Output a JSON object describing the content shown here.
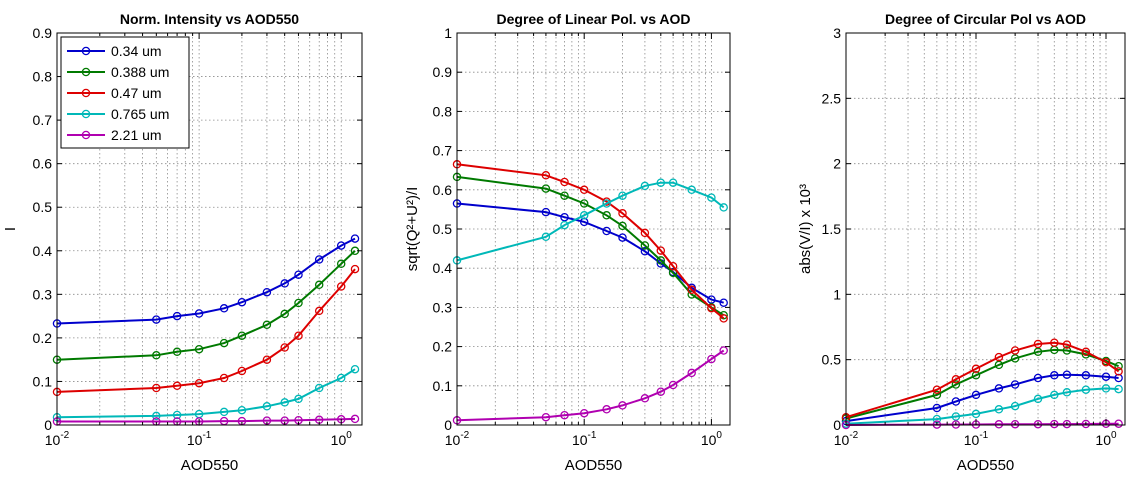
{
  "chart_data": [
    {
      "type": "line",
      "title": "Norm. Intensity vs AOD550",
      "xlabel": "AOD550",
      "ylabel": "I",
      "xscale": "log",
      "xlim": [
        0.01,
        1.4
      ],
      "ylim": [
        0,
        0.9
      ],
      "yticks": [
        "0",
        "0.1",
        "0.2",
        "0.3",
        "0.4",
        "0.5",
        "0.6",
        "0.7",
        "0.8",
        "0.9"
      ],
      "xticks": [
        {
          "base": "10",
          "exp": "-2"
        },
        {
          "base": "10",
          "exp": "-1"
        },
        {
          "base": "10",
          "exp": "0"
        }
      ],
      "grid": true,
      "legend": "top-left",
      "x": [
        0.01,
        0.05,
        0.07,
        0.1,
        0.15,
        0.2,
        0.3,
        0.4,
        0.5,
        0.7,
        1.0,
        1.25
      ],
      "series": [
        {
          "name": "0.34 um",
          "color": "#0000cc",
          "values": [
            0.233,
            0.242,
            0.25,
            0.256,
            0.268,
            0.282,
            0.305,
            0.325,
            0.345,
            0.38,
            0.412,
            0.428
          ]
        },
        {
          "name": "0.388 um",
          "color": "#007a00",
          "values": [
            0.15,
            0.16,
            0.168,
            0.174,
            0.188,
            0.205,
            0.23,
            0.255,
            0.28,
            0.322,
            0.37,
            0.4
          ]
        },
        {
          "name": "0.47 um",
          "color": "#dd0000",
          "values": [
            0.076,
            0.085,
            0.09,
            0.096,
            0.108,
            0.124,
            0.15,
            0.178,
            0.205,
            0.262,
            0.318,
            0.358
          ]
        },
        {
          "name": "0.765 um",
          "color": "#00b8b8",
          "values": [
            0.018,
            0.021,
            0.023,
            0.025,
            0.03,
            0.034,
            0.043,
            0.052,
            0.06,
            0.085,
            0.108,
            0.128
          ]
        },
        {
          "name": "2.21 um",
          "color": "#b000b0",
          "values": [
            0.008,
            0.008,
            0.008,
            0.008,
            0.009,
            0.009,
            0.01,
            0.01,
            0.011,
            0.012,
            0.013,
            0.014
          ]
        }
      ]
    },
    {
      "type": "line",
      "title": "Degree of Linear Pol. vs AOD",
      "xlabel": "AOD550",
      "ylabel": "sqrt(Q²+U²)/I",
      "xscale": "log",
      "xlim": [
        0.01,
        1.4
      ],
      "ylim": [
        0,
        1
      ],
      "yticks": [
        "0",
        "0.1",
        "0.2",
        "0.3",
        "0.4",
        "0.5",
        "0.6",
        "0.7",
        "0.8",
        "0.9",
        "1"
      ],
      "xticks": [
        {
          "base": "10",
          "exp": "-2"
        },
        {
          "base": "10",
          "exp": "-1"
        },
        {
          "base": "10",
          "exp": "0"
        }
      ],
      "grid": true,
      "x": [
        0.01,
        0.05,
        0.07,
        0.1,
        0.15,
        0.2,
        0.3,
        0.4,
        0.5,
        0.7,
        1.0,
        1.25
      ],
      "series": [
        {
          "color": "#0000cc",
          "values": [
            0.565,
            0.543,
            0.53,
            0.518,
            0.495,
            0.478,
            0.443,
            0.412,
            0.39,
            0.35,
            0.32,
            0.312
          ]
        },
        {
          "color": "#007a00",
          "values": [
            0.633,
            0.603,
            0.585,
            0.565,
            0.535,
            0.508,
            0.458,
            0.42,
            0.388,
            0.333,
            0.3,
            0.28
          ]
        },
        {
          "color": "#dd0000",
          "values": [
            0.665,
            0.637,
            0.62,
            0.6,
            0.57,
            0.54,
            0.49,
            0.445,
            0.405,
            0.345,
            0.298,
            0.272
          ]
        },
        {
          "color": "#00b8b8",
          "values": [
            0.42,
            0.48,
            0.51,
            0.535,
            0.565,
            0.585,
            0.61,
            0.618,
            0.618,
            0.6,
            0.58,
            0.555
          ]
        },
        {
          "color": "#b000b0",
          "values": [
            0.012,
            0.02,
            0.025,
            0.03,
            0.04,
            0.05,
            0.068,
            0.085,
            0.102,
            0.133,
            0.168,
            0.19
          ]
        }
      ]
    },
    {
      "type": "line",
      "title": "Degree of Circular Pol vs AOD",
      "xlabel": "AOD550",
      "ylabel": "abs(V/I) x 10³",
      "xscale": "log",
      "xlim": [
        0.01,
        1.4
      ],
      "ylim": [
        0,
        3
      ],
      "yticks": [
        "0",
        "0.5",
        "1",
        "1.5",
        "2",
        "2.5",
        "3"
      ],
      "xticks": [
        {
          "base": "10",
          "exp": "-2"
        },
        {
          "base": "10",
          "exp": "-1"
        },
        {
          "base": "10",
          "exp": "0"
        }
      ],
      "grid": true,
      "x": [
        0.01,
        0.05,
        0.07,
        0.1,
        0.15,
        0.2,
        0.3,
        0.4,
        0.5,
        0.7,
        1.0,
        1.25
      ],
      "series": [
        {
          "color": "#0000cc",
          "values": [
            0.03,
            0.13,
            0.18,
            0.23,
            0.28,
            0.31,
            0.36,
            0.38,
            0.385,
            0.38,
            0.37,
            0.36
          ]
        },
        {
          "color": "#007a00",
          "values": [
            0.05,
            0.23,
            0.31,
            0.38,
            0.46,
            0.51,
            0.56,
            0.575,
            0.57,
            0.54,
            0.49,
            0.45
          ]
        },
        {
          "color": "#dd0000",
          "values": [
            0.06,
            0.27,
            0.35,
            0.43,
            0.52,
            0.57,
            0.62,
            0.63,
            0.615,
            0.56,
            0.48,
            0.41
          ]
        },
        {
          "color": "#00b8b8",
          "values": [
            0.01,
            0.045,
            0.065,
            0.085,
            0.12,
            0.145,
            0.2,
            0.23,
            0.25,
            0.27,
            0.28,
            0.275
          ]
        },
        {
          "color": "#b000b0",
          "values": [
            0.0,
            0.003,
            0.004,
            0.004,
            0.005,
            0.006,
            0.006,
            0.007,
            0.007,
            0.008,
            0.009,
            0.01
          ]
        }
      ]
    }
  ]
}
